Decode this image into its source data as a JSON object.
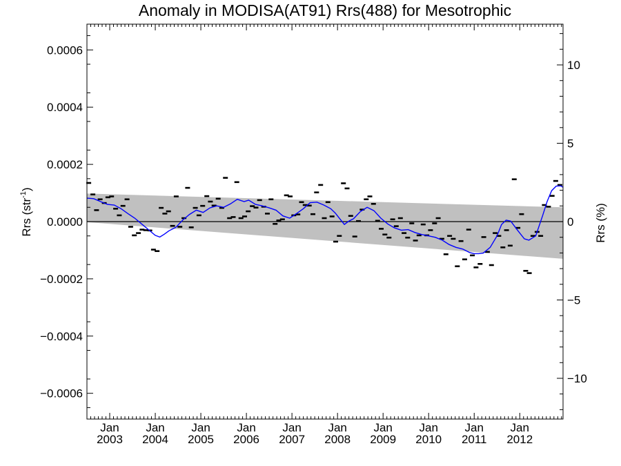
{
  "chart_data": {
    "type": "scatter",
    "title": "Anomaly in MODISA(AT91) Rrs(488) for Mesotrophic",
    "ylabel": "Rrs (str",
    "ylabel_sup": "-1",
    "ylabel_close": ")",
    "y2label": "Rrs (%)",
    "ylim": [
      -0.00069,
      0.00069
    ],
    "y2lim": [
      -12.6,
      12.6
    ],
    "xlim": [
      2002.5,
      2012.95
    ],
    "yticks": [
      -0.0006,
      -0.0004,
      -0.0002,
      0.0,
      0.0002,
      0.0004,
      0.0006
    ],
    "ytick_labels": [
      "−0.0006",
      "−0.0004",
      "−0.0002",
      "0.0000",
      "0.0002",
      "0.0004",
      "0.0006"
    ],
    "y2ticks": [
      -10,
      -5,
      0,
      5,
      10
    ],
    "y2tick_labels": [
      "−10",
      "−5",
      "0",
      "5",
      "10"
    ],
    "xticks": [
      2003,
      2004,
      2005,
      2006,
      2007,
      2008,
      2009,
      2010,
      2011,
      2012
    ],
    "xtick_labels_top": [
      "Jan",
      "Jan",
      "Jan",
      "Jan",
      "Jan",
      "Jan",
      "Jan",
      "Jan",
      "Jan",
      "Jan"
    ],
    "xtick_labels_bottom": [
      "2003",
      "2004",
      "2005",
      "2006",
      "2007",
      "2008",
      "2009",
      "2010",
      "2011",
      "2012"
    ],
    "zero_line": 0.0,
    "colors": {
      "band": "#c0c0c0",
      "running_mean": "#0000ff",
      "points": "#000000",
      "zero_line": "#000000"
    },
    "band": {
      "upper": {
        "x": [
          2002.5,
          2012.95
        ],
        "y": [
          9.8e-05,
          5e-05
        ]
      },
      "lower": {
        "x": [
          2002.5,
          2012.95
        ],
        "y": [
          -2e-06,
          -0.00013
        ]
      }
    },
    "monthly_anomaly": {
      "x": [
        2002.54,
        2002.63,
        2002.71,
        2002.79,
        2002.88,
        2002.96,
        2003.04,
        2003.13,
        2003.21,
        2003.29,
        2003.38,
        2003.46,
        2003.54,
        2003.63,
        2003.71,
        2003.79,
        2003.88,
        2003.96,
        2004.04,
        2004.13,
        2004.21,
        2004.29,
        2004.38,
        2004.46,
        2004.54,
        2004.63,
        2004.71,
        2004.79,
        2004.88,
        2004.96,
        2005.04,
        2005.13,
        2005.21,
        2005.29,
        2005.38,
        2005.46,
        2005.54,
        2005.63,
        2005.71,
        2005.79,
        2005.88,
        2005.96,
        2006.04,
        2006.13,
        2006.21,
        2006.29,
        2006.38,
        2006.46,
        2006.54,
        2006.63,
        2006.71,
        2006.79,
        2006.88,
        2006.96,
        2007.04,
        2007.13,
        2007.21,
        2007.29,
        2007.38,
        2007.46,
        2007.54,
        2007.63,
        2007.71,
        2007.79,
        2007.88,
        2007.96,
        2008.04,
        2008.13,
        2008.21,
        2008.29,
        2008.38,
        2008.46,
        2008.54,
        2008.63,
        2008.71,
        2008.79,
        2008.88,
        2008.96,
        2009.04,
        2009.13,
        2009.21,
        2009.29,
        2009.38,
        2009.46,
        2009.54,
        2009.63,
        2009.71,
        2009.79,
        2009.88,
        2009.96,
        2010.04,
        2010.13,
        2010.21,
        2010.29,
        2010.38,
        2010.46,
        2010.54,
        2010.63,
        2010.71,
        2010.79,
        2010.88,
        2010.96,
        2011.04,
        2011.13,
        2011.21,
        2011.29,
        2011.38,
        2011.46,
        2011.54,
        2011.63,
        2011.71,
        2011.79,
        2011.88,
        2011.96,
        2012.04,
        2012.13,
        2012.21,
        2012.29,
        2012.38,
        2012.46,
        2012.54,
        2012.63,
        2012.71,
        2012.79,
        2012.88
      ],
      "y": [
        0.000135,
        9.5e-05,
        4e-05,
        7.8e-05,
        6.5e-05,
        8.5e-05,
        8.8e-05,
        4.5e-05,
        2.2e-05,
        5.5e-05,
        7.8e-05,
        -1.8e-05,
        -4.8e-05,
        -4e-05,
        -2.8e-05,
        -3e-05,
        -3.1e-05,
        -9.8e-05,
        -0.000103,
        4.8e-05,
        2.8e-05,
        3.6e-05,
        -1.5e-05,
        8.8e-05,
        -1.8e-05,
        1.2e-05,
        0.000118,
        -2e-05,
        4.8e-05,
        2.2e-05,
        5.5e-05,
        8.9e-05,
        7e-05,
        5.6e-05,
        8e-05,
        4.8e-05,
        0.000153,
        1.2e-05,
        1.6e-05,
        0.000138,
        1.2e-05,
        1.8e-05,
        3.6e-05,
        5.4e-05,
        4.9e-05,
        7.5e-05,
        5.2e-05,
        2.8e-05,
        7.8e-05,
        -8e-06,
        4e-06,
        8e-06,
        9.2e-05,
        8.8e-05,
        2.2e-05,
        2.5e-05,
        6.8e-05,
        5.8e-05,
        5.6e-05,
        2.6e-05,
        0.000102,
        0.000128,
        1.2e-05,
        6.8e-05,
        1.8e-05,
        -7e-05,
        -5e-05,
        0.000134,
        0.000116,
        2e-05,
        -5.2e-05,
        2e-06,
        4.2e-05,
        7.8e-05,
        8.8e-05,
        6.2e-05,
        3e-06,
        -2.5e-05,
        -4.5e-05,
        -5.6e-05,
        8e-06,
        -1.6e-05,
        1.2e-05,
        -4e-05,
        -5.6e-05,
        -6e-06,
        -6.6e-05,
        -4.8e-05,
        -1e-05,
        -4.8e-05,
        -3e-05,
        -6e-06,
        1.2e-05,
        -6e-05,
        -0.000114,
        -5e-05,
        -6e-05,
        -0.000156,
        -6.8e-05,
        -0.000132,
        -2.8e-05,
        -0.000118,
        -0.00016,
        -0.000148,
        -5.4e-05,
        -0.000106,
        -0.000152,
        -4e-05,
        -5e-05,
        -9e-05,
        -3e-05,
        -8.4e-05,
        0.000148,
        -2.2e-05,
        2.6e-05,
        -0.000172,
        -0.00018,
        -5e-05,
        -3.6e-05,
        -5e-05,
        5.8e-05,
        5.2e-05,
        9e-05,
        0.000142,
        0.000128
      ]
    },
    "running_mean": {
      "x": [
        2002.5,
        2002.65,
        2002.8,
        2002.95,
        2003.1,
        2003.25,
        2003.4,
        2003.55,
        2003.7,
        2003.85,
        2004.0,
        2004.1,
        2004.2,
        2004.3,
        2004.45,
        2004.6,
        2004.75,
        2004.9,
        2005.05,
        2005.2,
        2005.35,
        2005.5,
        2005.65,
        2005.8,
        2005.95,
        2006.05,
        2006.2,
        2006.35,
        2006.5,
        2006.65,
        2006.8,
        2006.95,
        2007.1,
        2007.25,
        2007.4,
        2007.55,
        2007.7,
        2007.85,
        2007.95,
        2008.05,
        2008.15,
        2008.25,
        2008.35,
        2008.5,
        2008.65,
        2008.8,
        2008.95,
        2009.1,
        2009.25,
        2009.4,
        2009.55,
        2009.7,
        2009.85,
        2010.0,
        2010.15,
        2010.3,
        2010.45,
        2010.6,
        2010.75,
        2010.9,
        2011.0,
        2011.1,
        2011.2,
        2011.35,
        2011.5,
        2011.6,
        2011.7,
        2011.8,
        2011.95,
        2012.1,
        2012.2,
        2012.35,
        2012.5,
        2012.6,
        2012.7,
        2012.8,
        2012.9,
        2012.95
      ],
      "y": [
        8.2e-05,
        8e-05,
        7e-05,
        6e-05,
        5.8e-05,
        4.5e-05,
        2.8e-05,
        1.2e-05,
        -8e-06,
        -2.8e-05,
        -4.8e-05,
        -5.4e-05,
        -4.4e-05,
        -3.2e-05,
        -2e-05,
        5e-06,
        2.5e-05,
        4e-05,
        3.2e-05,
        4.8e-05,
        5.5e-05,
        5e-05,
        6.2e-05,
        7.8e-05,
        7e-05,
        7.5e-05,
        6e-05,
        5.5e-05,
        4.8e-05,
        4e-05,
        2e-05,
        1.2e-05,
        2.8e-05,
        4.5e-05,
        6.6e-05,
        6.8e-05,
        5.8e-05,
        4.5e-05,
        3e-05,
        1e-05,
        -1e-05,
        2e-06,
        1e-05,
        3.5e-05,
        5e-05,
        3.8e-05,
        1.2e-05,
        -8e-06,
        -2.2e-05,
        -3e-05,
        -2.8e-05,
        -3.8e-05,
        -4.5e-05,
        -5e-05,
        -5.5e-05,
        -6.5e-05,
        -8e-05,
        -9e-05,
        -9.6e-05,
        -0.000108,
        -0.000112,
        -0.000112,
        -0.00011,
        -9e-05,
        -5e-05,
        -1e-05,
        5e-06,
        2e-06,
        -3e-05,
        -6e-05,
        -6.5e-05,
        -5e-05,
        2e-05,
        7e-05,
        0.000108,
        0.000124,
        0.000125,
        0.00012
      ]
    }
  }
}
